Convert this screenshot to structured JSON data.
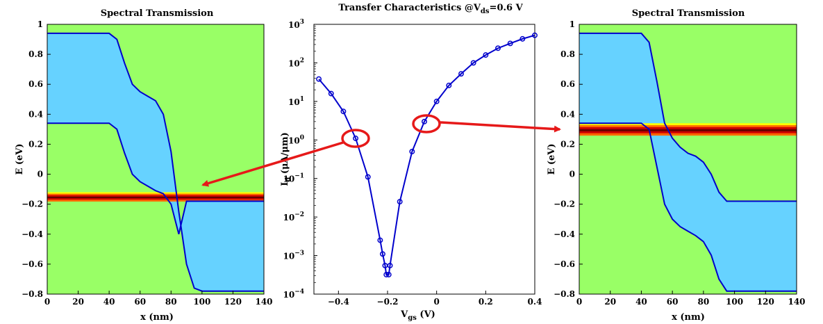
{
  "figure_title": "Transfer Characteristics @V",
  "figure_title_sub": "ds",
  "figure_title_tail": "=0.6 V",
  "colors": {
    "background_region": "#99ff66",
    "band_fill": "#66d2ff",
    "curve": "#0000cc",
    "arrow": "#e61919",
    "hot_dark": "#660000",
    "hot_mid": "#cc0000",
    "hot_orange": "#ff6600",
    "hot_yellow": "#ffff00"
  },
  "chart_data": [
    {
      "type": "line",
      "title": "Spectral Transmission",
      "xlabel": "x (nm)",
      "ylabel": "E (eV)",
      "xlim": [
        0,
        140
      ],
      "ylim": [
        -0.8,
        1
      ],
      "xticks": [
        "0",
        "20",
        "40",
        "60",
        "80",
        "100",
        "120",
        "140"
      ],
      "yticks": [
        "1",
        "0.8",
        "0.6",
        "0.4",
        "0.2",
        "0",
        "−0.2",
        "−0.4",
        "−0.6",
        "−0.8"
      ],
      "series": [
        {
          "x": [
            0,
            40,
            45,
            50,
            55,
            60,
            65,
            70,
            75,
            80,
            85,
            90,
            95,
            100,
            140
          ],
          "y": [
            0.94,
            0.94,
            0.9,
            0.74,
            0.6,
            0.55,
            0.52,
            0.49,
            0.4,
            0.15,
            -0.25,
            -0.6,
            -0.76,
            -0.78,
            -0.78
          ]
        },
        {
          "x": [
            0,
            40,
            45,
            50,
            55,
            60,
            65,
            70,
            75,
            80,
            85,
            90,
            95,
            100,
            140
          ],
          "y": [
            0.34,
            0.34,
            0.3,
            0.14,
            0.0,
            -0.05,
            -0.08,
            -0.11,
            -0.13,
            -0.2,
            -0.4,
            -0.18,
            -0.18,
            -0.18,
            -0.18
          ]
        }
      ],
      "transmission_band_energy": [
        -0.18,
        -0.12
      ],
      "grid": false
    },
    {
      "type": "line",
      "title": "",
      "xlabel": "V",
      "xlabel_sub": "gs",
      "xlabel_tail": " (V)",
      "ylabel": "I",
      "ylabel_sub": "d",
      "ylabel_tail": " (μA/μm)",
      "yscale": "log",
      "xlim": [
        -0.5,
        0.4
      ],
      "ylim": [
        0.0001,
        1000
      ],
      "xticks": [
        "−0.4",
        "−0.2",
        "0",
        "0.2",
        "0.4"
      ],
      "yticks_base": [
        "10",
        "10",
        "10",
        "10",
        "10",
        "10",
        "10",
        "10"
      ],
      "yticks_exp": [
        "3",
        "2",
        "1",
        "0",
        "−1",
        "−2",
        "−3",
        "−4"
      ],
      "series": [
        {
          "x": [
            -0.48,
            -0.43,
            -0.38,
            -0.33,
            -0.28,
            -0.23,
            -0.22,
            -0.21,
            -0.205,
            -0.195,
            -0.19,
            -0.15,
            -0.1,
            -0.05,
            0.0,
            0.05,
            0.1,
            0.15,
            0.2,
            0.25,
            0.3,
            0.35,
            0.4
          ],
          "y": [
            38,
            16,
            5.5,
            1.1,
            0.11,
            0.0025,
            0.0011,
            0.00055,
            0.00032,
            0.00032,
            0.00055,
            0.025,
            0.5,
            3,
            10,
            26,
            52,
            100,
            160,
            240,
            320,
            420,
            520
          ]
        }
      ],
      "grid": false
    },
    {
      "type": "line",
      "title": "Spectral Transmission",
      "xlabel": "x (nm)",
      "ylabel": "E (eV)",
      "xlim": [
        0,
        140
      ],
      "ylim": [
        -0.8,
        1
      ],
      "xticks": [
        "0",
        "20",
        "40",
        "60",
        "80",
        "100",
        "120",
        "140"
      ],
      "yticks": [
        "1",
        "0.8",
        "0.6",
        "0.4",
        "0.2",
        "0",
        "−0.2",
        "−0.4",
        "−0.6",
        "−0.8"
      ],
      "series": [
        {
          "x": [
            0,
            40,
            45,
            50,
            55,
            60,
            65,
            70,
            75,
            80,
            85,
            90,
            95,
            100,
            140
          ],
          "y": [
            0.94,
            0.94,
            0.88,
            0.62,
            0.34,
            0.24,
            0.18,
            0.14,
            0.12,
            0.08,
            0.0,
            -0.12,
            -0.18,
            -0.18,
            -0.18
          ]
        },
        {
          "x": [
            0,
            40,
            45,
            50,
            55,
            60,
            65,
            70,
            75,
            80,
            85,
            90,
            95,
            100,
            140
          ],
          "y": [
            0.34,
            0.34,
            0.3,
            0.05,
            -0.2,
            -0.3,
            -0.35,
            -0.38,
            -0.41,
            -0.45,
            -0.54,
            -0.7,
            -0.78,
            -0.78,
            -0.78
          ]
        }
      ],
      "transmission_band_energy": [
        0.26,
        0.34
      ],
      "grid": false
    }
  ]
}
